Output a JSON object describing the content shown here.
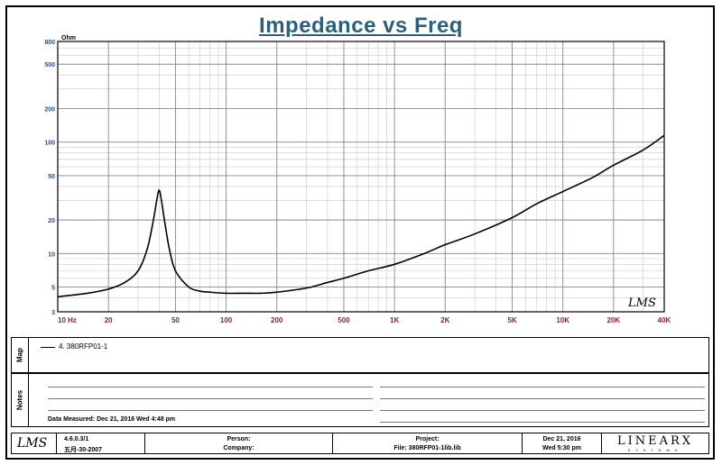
{
  "chart_data": {
    "type": "line",
    "title": "Impedance vs Freq",
    "y_unit": "Ohm",
    "x_scale": "log",
    "y_scale": "log",
    "xlim": [
      10,
      40000
    ],
    "ylim": [
      3,
      800
    ],
    "grid": true,
    "x_ticks": [
      {
        "value": 10,
        "label": "10  Hz"
      },
      {
        "value": 20,
        "label": "20"
      },
      {
        "value": 50,
        "label": "50"
      },
      {
        "value": 100,
        "label": "100"
      },
      {
        "value": 200,
        "label": "200"
      },
      {
        "value": 500,
        "label": "500"
      },
      {
        "value": 1000,
        "label": "1K"
      },
      {
        "value": 2000,
        "label": "2K"
      },
      {
        "value": 5000,
        "label": "5K"
      },
      {
        "value": 10000,
        "label": "10K"
      },
      {
        "value": 20000,
        "label": "20K"
      },
      {
        "value": 40000,
        "label": "40K"
      }
    ],
    "y_ticks": [
      {
        "value": 3,
        "label": "3"
      },
      {
        "value": 5,
        "label": "5"
      },
      {
        "value": 10,
        "label": "10"
      },
      {
        "value": 20,
        "label": "20"
      },
      {
        "value": 50,
        "label": "50"
      },
      {
        "value": 100,
        "label": "100"
      },
      {
        "value": 200,
        "label": "200"
      },
      {
        "value": 500,
        "label": "500"
      },
      {
        "value": 800,
        "label": "800"
      }
    ],
    "series": [
      {
        "name": "4. 380RFP01-1",
        "color": "#000000",
        "x": [
          10,
          15,
          20,
          25,
          30,
          34,
          37,
          39,
          40,
          41,
          43,
          46,
          50,
          60,
          70,
          80,
          100,
          130,
          160,
          200,
          300,
          400,
          500,
          700,
          1000,
          1500,
          2000,
          3000,
          5000,
          7000,
          10000,
          15000,
          20000,
          30000,
          40000
        ],
        "y": [
          4.1,
          4.4,
          4.8,
          5.5,
          7.0,
          11,
          20,
          32,
          37,
          32,
          20,
          11,
          7.0,
          5.0,
          4.6,
          4.5,
          4.4,
          4.4,
          4.4,
          4.5,
          4.9,
          5.5,
          6.0,
          7.0,
          8.0,
          10.0,
          12.0,
          15.0,
          21.0,
          28.0,
          36.0,
          48.0,
          62.0,
          85.0,
          115.0
        ]
      }
    ]
  },
  "watermark": "LMS",
  "map": {
    "label": "Map",
    "legend_text": "4. 380RFP01-1"
  },
  "notes": {
    "label": "Notes",
    "data_measured": "Data Measured: Dec 21, 2016  Wed  4:48 pm"
  },
  "footer": {
    "logo": "LMS",
    "version": "4.6.0.3/1",
    "build_date": "五月-30-2007",
    "person_label": "Person:",
    "company_label": "Company:",
    "project_label": "Project:",
    "file_label": "File: 380RFP01-1lib.lib",
    "date": "Dec 21, 2016",
    "time": "Wed  5:30 pm",
    "brand": "LINEARX",
    "brand_sub": "SYSTEMS"
  }
}
